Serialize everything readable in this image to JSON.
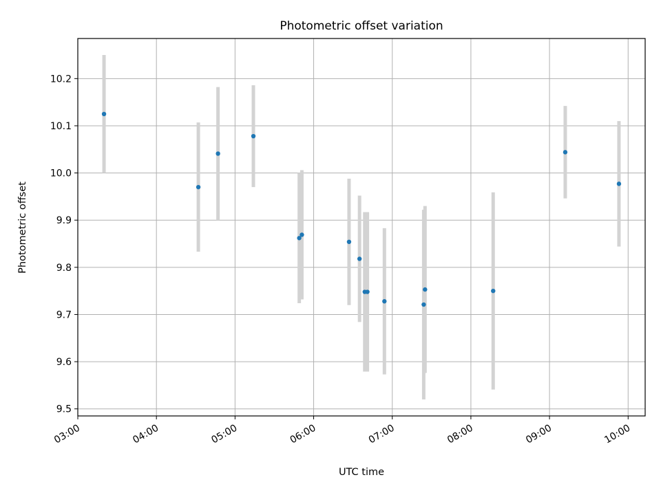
{
  "chart_data": {
    "type": "scatter",
    "title": "Photometric offset variation",
    "xlabel": "UTC time",
    "ylabel": "Photometric offset",
    "x_ticks": [
      "03:00",
      "04:00",
      "05:00",
      "06:00",
      "07:00",
      "08:00",
      "09:00",
      "10:00"
    ],
    "y_ticks": [
      "9.5",
      "9.6",
      "9.7",
      "9.8",
      "9.9",
      "10.0",
      "10.1",
      "10.2"
    ],
    "xlim": [
      "03:00",
      "10:13"
    ],
    "ylim": [
      9.485,
      10.285
    ],
    "grid": true,
    "colors": {
      "point": "#1f77b4",
      "errorbar": "#d3d3d3",
      "grid": "#b0b0b0"
    },
    "points": [
      {
        "x": "03:20",
        "y": 10.125,
        "err": 0.125
      },
      {
        "x": "04:32",
        "y": 9.97,
        "err": 0.137
      },
      {
        "x": "04:47",
        "y": 10.041,
        "err": 0.141
      },
      {
        "x": "05:14",
        "y": 10.078,
        "err": 0.108
      },
      {
        "x": "05:49",
        "y": 9.862,
        "err": 0.138
      },
      {
        "x": "05:51",
        "y": 9.869,
        "err": 0.137
      },
      {
        "x": "06:27",
        "y": 9.854,
        "err": 0.134
      },
      {
        "x": "06:35",
        "y": 9.818,
        "err": 0.134
      },
      {
        "x": "06:39",
        "y": 9.748,
        "err": 0.169
      },
      {
        "x": "06:41",
        "y": 9.748,
        "err": 0.169
      },
      {
        "x": "06:54",
        "y": 9.728,
        "err": 0.155
      },
      {
        "x": "07:24",
        "y": 9.721,
        "err": 0.201
      },
      {
        "x": "07:25",
        "y": 9.753,
        "err": 0.177
      },
      {
        "x": "08:17",
        "y": 9.75,
        "err": 0.209
      },
      {
        "x": "09:12",
        "y": 10.044,
        "err": 0.098
      },
      {
        "x": "09:53",
        "y": 9.977,
        "err": 0.133
      }
    ]
  }
}
